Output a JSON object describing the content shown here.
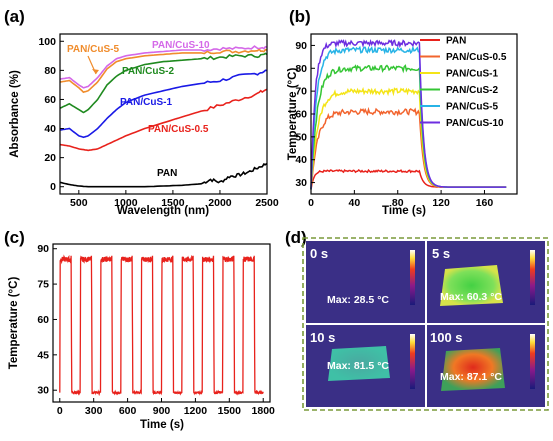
{
  "chart_data": [
    {
      "panel": "(a)",
      "type": "line",
      "xlabel": "Wavelength (nm)",
      "ylabel": "Absorbance (%)",
      "xlim": [
        300,
        2500
      ],
      "ylim": [
        -5,
        105
      ],
      "xticks": [
        "500",
        "1000",
        "1500",
        "2000",
        "2500"
      ],
      "yticks": [
        "0",
        "20",
        "40",
        "60",
        "80",
        "100"
      ],
      "series": [
        {
          "name": "PAN",
          "color": "#000000",
          "x": [
            300,
            400,
            500,
            600,
            700,
            800,
            900,
            1000,
            1200,
            1400,
            1600,
            1800,
            1900,
            2000,
            2100,
            2200,
            2300,
            2400,
            2500
          ],
          "y": [
            3,
            1.5,
            0.5,
            0,
            0,
            0,
            0,
            0,
            0,
            0.5,
            1,
            2,
            5,
            3,
            7,
            8,
            10,
            13,
            16
          ]
        },
        {
          "name": "PAN/CuS-0.5",
          "color": "#e8221c",
          "x": [
            300,
            400,
            500,
            600,
            700,
            800,
            900,
            1000,
            1200,
            1400,
            1600,
            1800,
            2000,
            2200,
            2400,
            2500
          ],
          "y": [
            29,
            28,
            26,
            25,
            26,
            29,
            32,
            35,
            40,
            44,
            48,
            52,
            56,
            60,
            64,
            67
          ]
        },
        {
          "name": "PAN/CuS-1",
          "color": "#1a1ae6",
          "x": [
            300,
            400,
            500,
            550,
            600,
            700,
            800,
            900,
            1000,
            1200,
            1400,
            1600,
            1800,
            2000,
            2200,
            2400,
            2500
          ],
          "y": [
            39,
            40,
            35,
            34,
            35,
            40,
            47,
            53,
            58,
            63,
            66,
            69,
            71,
            73,
            76,
            78,
            80
          ]
        },
        {
          "name": "PAN/CuS-2",
          "color": "#1f8a1f",
          "x": [
            300,
            400,
            500,
            550,
            600,
            700,
            800,
            900,
            1000,
            1200,
            1400,
            1600,
            1800,
            2000,
            2200,
            2400,
            2500
          ],
          "y": [
            54,
            57,
            53,
            51,
            53,
            60,
            70,
            76,
            80,
            84,
            86,
            87,
            88,
            89,
            90,
            90,
            91
          ]
        },
        {
          "name": "PAN/CuS-5",
          "color": "#f08c2c",
          "x": [
            300,
            400,
            500,
            550,
            600,
            700,
            800,
            900,
            1000,
            1200,
            1400,
            1600,
            1800,
            2000,
            2200,
            2400,
            2500
          ],
          "y": [
            72,
            73,
            68,
            65,
            66,
            72,
            81,
            86,
            88,
            90,
            91,
            92,
            92,
            93,
            93,
            94,
            94
          ]
        },
        {
          "name": "PAN/CuS-10",
          "color": "#d468e8",
          "x": [
            300,
            400,
            500,
            550,
            600,
            700,
            800,
            900,
            1000,
            1200,
            1400,
            1600,
            1800,
            2000,
            2200,
            2400,
            2500
          ],
          "y": [
            74,
            75,
            70,
            68,
            69,
            75,
            83,
            88,
            90,
            92,
            93,
            94,
            94,
            95,
            95,
            96,
            96
          ]
        }
      ],
      "annotations": [
        "PAN/CuS-10",
        "PAN/CuS-5",
        "PAN/CuS-2",
        "PAN/CuS-1",
        "PAN/CuS-0.5",
        "PAN"
      ]
    },
    {
      "panel": "(b)",
      "type": "line",
      "xlabel": "Time (s)",
      "ylabel": "Temperature (°C)",
      "xlim": [
        0,
        190
      ],
      "ylim": [
        25,
        95
      ],
      "xticks": [
        "0",
        "40",
        "80",
        "120",
        "160"
      ],
      "yticks": [
        "30",
        "40",
        "50",
        "60",
        "70",
        "80",
        "90"
      ],
      "legend": "top-right",
      "series": [
        {
          "name": "PAN",
          "color": "#e8221c",
          "plateau": 35,
          "rise_time": 8
        },
        {
          "name": "PAN/CuS-0.5",
          "color": "#f2642e",
          "plateau": 61,
          "rise_time": 20
        },
        {
          "name": "PAN/CuS-1",
          "color": "#f4e418",
          "plateau": 70,
          "rise_time": 20
        },
        {
          "name": "PAN/CuS-2",
          "color": "#34c534",
          "plateau": 80,
          "rise_time": 18
        },
        {
          "name": "PAN/CuS-5",
          "color": "#27b3e6",
          "plateau": 88,
          "rise_time": 15
        },
        {
          "name": "PAN/CuS-10",
          "color": "#6d2ee0",
          "plateau": 91,
          "rise_time": 12
        }
      ],
      "start_temp": 27,
      "off_time": 100,
      "end_temp": 28
    },
    {
      "panel": "(c)",
      "type": "line",
      "xlabel": "Time (s)",
      "ylabel": "Temperature (°C)",
      "xlim": [
        -60,
        1860
      ],
      "ylim": [
        25,
        92
      ],
      "xticks": [
        "0",
        "300",
        "600",
        "900",
        "1200",
        "1500",
        "1800"
      ],
      "yticks": [
        "30",
        "45",
        "60",
        "75",
        "90"
      ],
      "series": [
        {
          "color": "#e8221c",
          "cycles": 10,
          "period": 180,
          "high": 87,
          "low": 29
        }
      ]
    }
  ],
  "panel_d": {
    "label": "(d)",
    "tiles": [
      {
        "time": "0 s",
        "max_label": "Max: 28.5 °C"
      },
      {
        "time": "5 s",
        "max_label": "Max: 60.3 °C"
      },
      {
        "time": "10 s",
        "max_label": "Max: 81.5 °C"
      },
      {
        "time": "100 s",
        "max_label": "Max: 87.1 °C"
      }
    ]
  }
}
